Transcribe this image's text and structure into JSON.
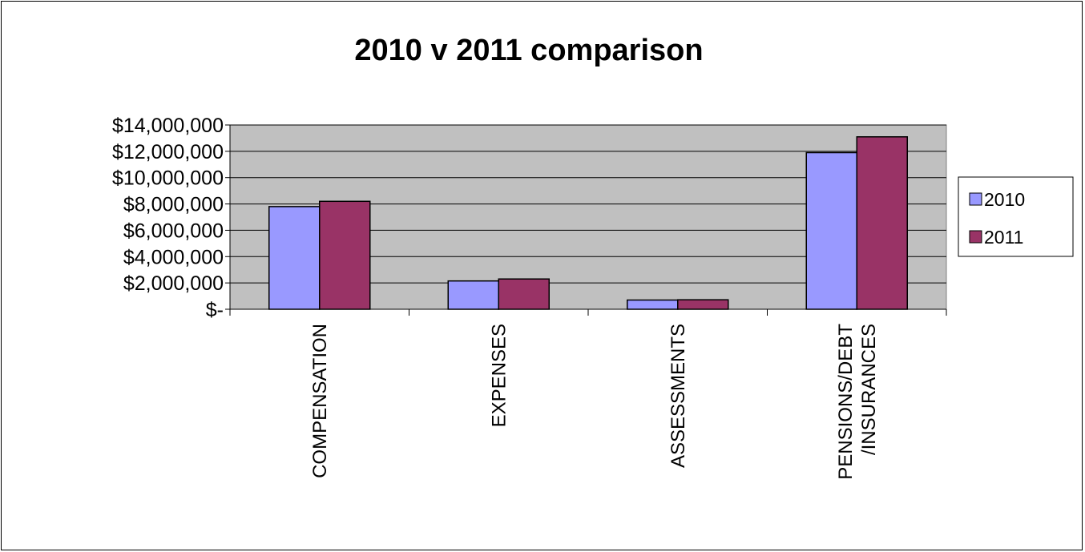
{
  "chart_data": {
    "type": "bar",
    "title": "2010 v 2011 comparison",
    "xlabel": "",
    "ylabel": "",
    "categories": [
      "COMPENSATION",
      "EXPENSES",
      "ASSESSMENTS",
      "PENSIONS/DEBT /INSURANCES"
    ],
    "category_lines": [
      [
        "COMPENSATION"
      ],
      [
        "EXPENSES"
      ],
      [
        "ASSESSMENTS"
      ],
      [
        "PENSIONS/DEBT",
        "/INSURANCES"
      ]
    ],
    "series": [
      {
        "name": "2010",
        "color": "#9999FF",
        "values": [
          7800000,
          2150000,
          700000,
          11900000
        ]
      },
      {
        "name": "2011",
        "color": "#993366",
        "values": [
          8200000,
          2300000,
          720000,
          13100000
        ]
      }
    ],
    "ylim": [
      0,
      14000000
    ],
    "yticks": [
      0,
      2000000,
      4000000,
      6000000,
      8000000,
      10000000,
      12000000,
      14000000
    ],
    "ytick_labels": [
      "$-",
      "$2,000,000",
      "$4,000,000",
      "$6,000,000",
      "$8,000,000",
      "$10,000,000",
      "$12,000,000",
      "$14,000,000"
    ],
    "grid": true,
    "plot_background": "#C0C0C0",
    "legend": "right"
  }
}
